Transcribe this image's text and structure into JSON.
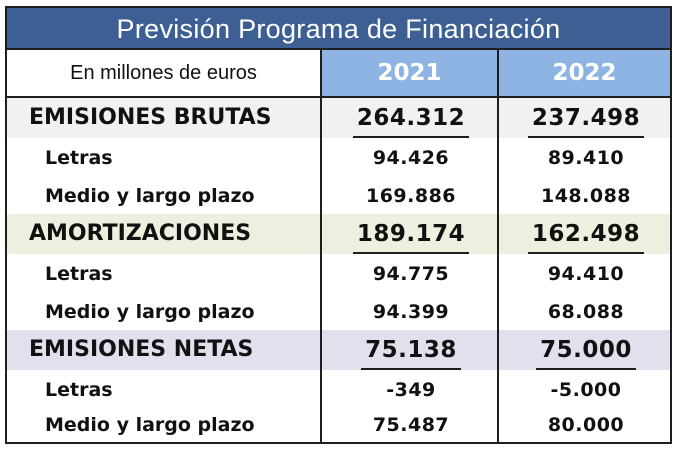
{
  "title": "Previsión Programa de Financiación",
  "units_label": "En millones de euros",
  "years": [
    "2021",
    "2022"
  ],
  "colors": {
    "title_background": "#3d5f93",
    "year_header_background": "#8eb4e3",
    "band_emisiones_brutas": "#f1f1f1",
    "band_amortizaciones": "#ebf1de",
    "band_emisiones_netas": "#e4dfec"
  },
  "sections": [
    {
      "label": "EMISIONES BRUTAS",
      "values": [
        "264.312",
        "237.498"
      ],
      "rows": [
        {
          "label": "Letras",
          "values": [
            "94.426",
            "89.410"
          ]
        },
        {
          "label": "Medio y largo plazo",
          "values": [
            "169.886",
            "148.088"
          ]
        }
      ]
    },
    {
      "label": "AMORTIZACIONES",
      "values": [
        "189.174",
        "162.498"
      ],
      "rows": [
        {
          "label": "Letras",
          "values": [
            "94.775",
            "94.410"
          ]
        },
        {
          "label": "Medio y largo plazo",
          "values": [
            "94.399",
            "68.088"
          ]
        }
      ]
    },
    {
      "label": "EMISIONES NETAS",
      "values": [
        "75.138",
        "75.000"
      ],
      "rows": [
        {
          "label": "Letras",
          "values": [
            "-349",
            "-5.000"
          ]
        },
        {
          "label": "Medio y largo plazo",
          "values": [
            "75.487",
            "80.000"
          ]
        }
      ]
    }
  ]
}
